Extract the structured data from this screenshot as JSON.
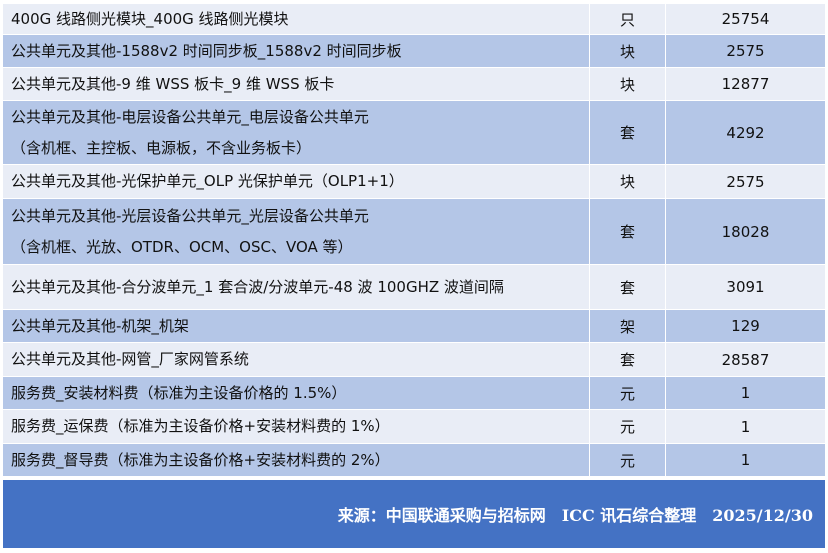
{
  "table": {
    "rows": [
      {
        "item": [
          "400G 线路侧光模块_400G 线路侧光模块"
        ],
        "unit": "只",
        "price": "25754"
      },
      {
        "item": [
          "公共单元及其他-1588v2 时间同步板_1588v2 时间同步板"
        ],
        "unit": "块",
        "price": "2575"
      },
      {
        "item": [
          "公共单元及其他-9 维 WSS 板卡_9 维 WSS 板卡"
        ],
        "unit": "块",
        "price": "12877"
      },
      {
        "item": [
          "公共单元及其他-电层设备公共单元_电层设备公共单元",
          "（含机框、主控板、电源板，不含业务板卡）"
        ],
        "unit": "套",
        "price": "4292"
      },
      {
        "item": [
          "公共单元及其他-光保护单元_OLP 光保护单元（OLP1+1）"
        ],
        "unit": "块",
        "price": "2575"
      },
      {
        "item": [
          "公共单元及其他-光层设备公共单元_光层设备公共单元",
          "（含机框、光放、OTDR、OCM、OSC、VOA 等）"
        ],
        "unit": "套",
        "price": "18028"
      },
      {
        "item": [
          "公共单元及其他-合分波单元_1 套合波/分波单元-48 波 100GHZ 波道间隔"
        ],
        "unit": "套",
        "price": "3091"
      },
      {
        "item": [
          "公共单元及其他-机架_机架"
        ],
        "unit": "架",
        "price": "129"
      },
      {
        "item": [
          "公共单元及其他-网管_厂家网管系统"
        ],
        "unit": "套",
        "price": "28587"
      },
      {
        "item": [
          "服务费_安装材料费（标准为主设备价格的 1.5%）"
        ],
        "unit": "元",
        "price": "1"
      },
      {
        "item": [
          "服务费_运保费（标准为主设备价格+安装材料费的 1%）"
        ],
        "unit": "元",
        "price": "1"
      },
      {
        "item": [
          "服务费_督导费（标准为主设备价格+安装材料费的 2%）"
        ],
        "unit": "元",
        "price": "1"
      }
    ]
  },
  "footer": {
    "text": "来源：中国联通采购与招标网　ICC 讯石综合整理　2025/12/30"
  }
}
